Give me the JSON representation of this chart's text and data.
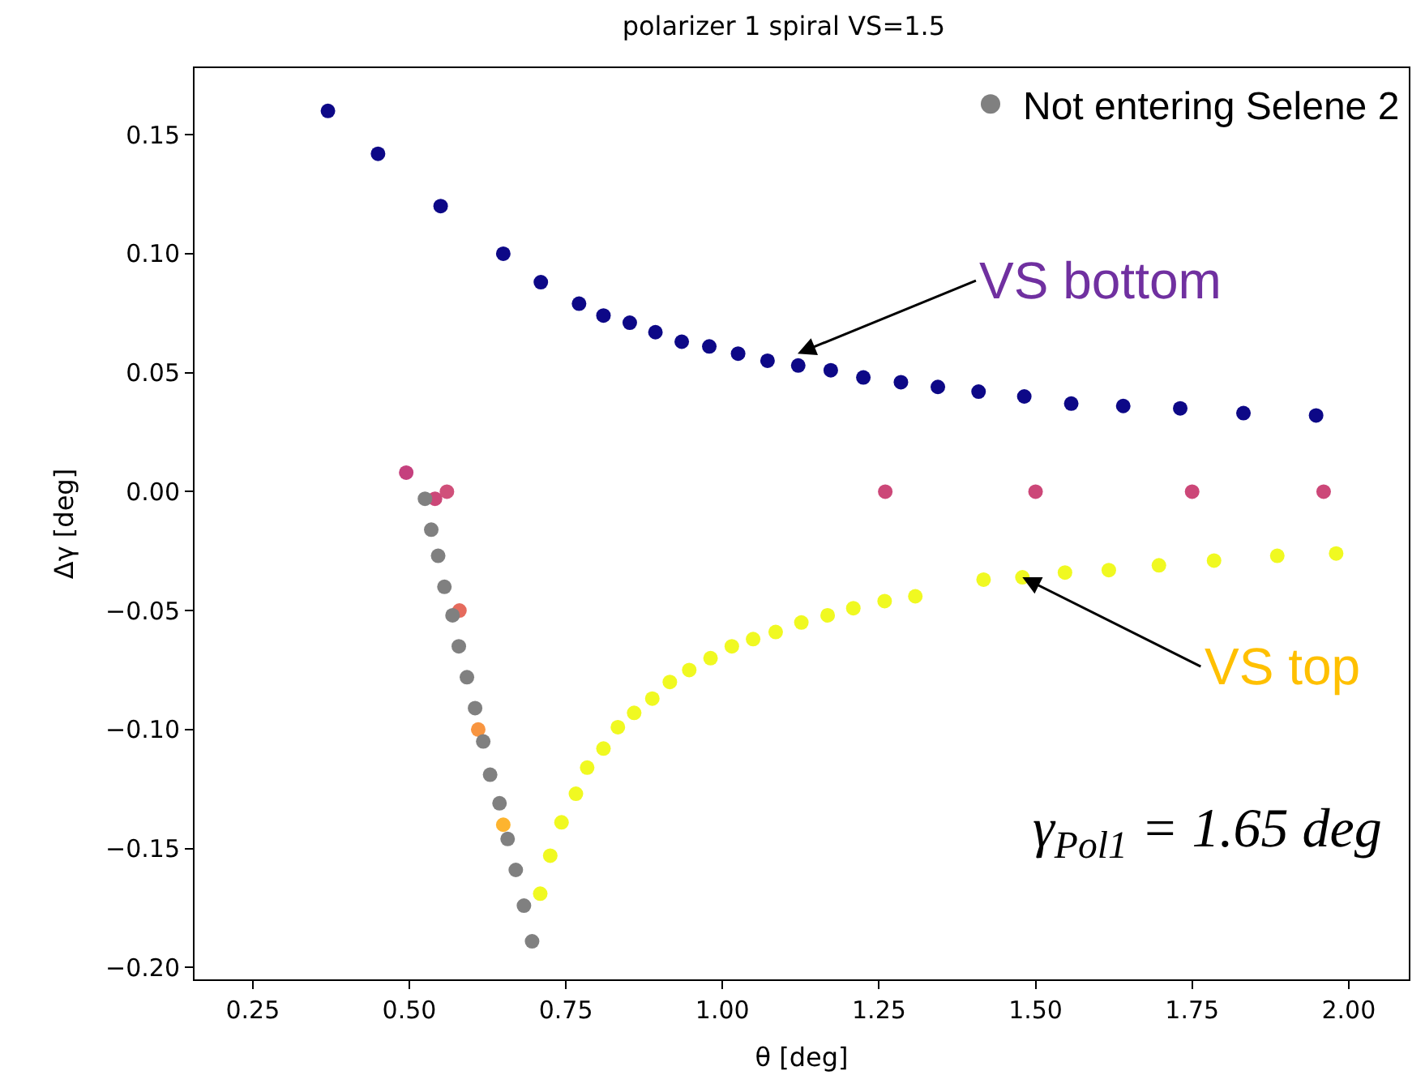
{
  "chart_data": {
    "type": "scatter",
    "title": "polarizer 1 spiral VS=1.5",
    "xlabel": "θ [deg]",
    "ylabel": "Δγ [deg]",
    "series": [
      {
        "x": [
          0.37,
          0.45,
          0.55,
          0.65,
          0.71,
          0.771,
          0.81,
          0.852,
          0.893,
          0.935,
          0.979,
          1.025,
          1.072,
          1.121,
          1.173,
          1.225,
          1.285,
          1.344,
          1.409,
          1.482,
          1.557,
          1.64,
          1.731,
          1.832,
          1.948,
          1.98,
          1.886,
          1.785,
          1.697,
          1.617,
          1.547,
          1.479,
          1.417,
          1.308,
          1.259,
          1.209,
          1.168,
          1.126,
          1.085,
          1.049,
          1.015,
          0.981,
          0.947,
          0.916,
          0.888,
          0.859,
          0.833,
          0.81,
          0.784,
          0.766,
          0.743,
          0.725,
          0.709,
          0.495,
          0.541,
          0.56,
          0.58,
          0.61,
          0.65,
          1.26,
          1.5,
          1.75,
          1.96
        ],
        "values": [
          0.16,
          0.142,
          0.12,
          0.1,
          0.088,
          0.079,
          0.074,
          0.071,
          0.067,
          0.063,
          0.061,
          0.058,
          0.055,
          0.053,
          0.051,
          0.048,
          0.046,
          0.044,
          0.042,
          0.04,
          0.037,
          0.036,
          0.035,
          0.033,
          0.032,
          -0.026,
          -0.027,
          -0.029,
          -0.031,
          -0.033,
          -0.034,
          -0.036,
          -0.037,
          -0.044,
          -0.046,
          -0.049,
          -0.052,
          -0.055,
          -0.059,
          -0.062,
          -0.065,
          -0.07,
          -0.075,
          -0.08,
          -0.087,
          -0.093,
          -0.099,
          -0.108,
          -0.116,
          -0.127,
          -0.139,
          -0.153,
          -0.169,
          0.008,
          -0.003,
          0.0,
          -0.05,
          -0.1,
          -0.14,
          0.0,
          0.0,
          0.0,
          0.0
        ],
        "colors": [
          "#0d0887",
          "#0d0887",
          "#0d0887",
          "#0d0887",
          "#0d0887",
          "#0d0887",
          "#0d0887",
          "#0d0887",
          "#0d0887",
          "#0d0887",
          "#0d0887",
          "#0d0887",
          "#0d0887",
          "#0d0887",
          "#0d0887",
          "#0d0887",
          "#0d0887",
          "#0d0887",
          "#0d0887",
          "#0d0887",
          "#0d0887",
          "#0d0887",
          "#0d0887",
          "#0d0887",
          "#0d0887",
          "#f0f921",
          "#f0f921",
          "#f0f921",
          "#f0f921",
          "#f0f921",
          "#f0f921",
          "#f0f921",
          "#f0f921",
          "#f0f921",
          "#f0f921",
          "#f0f921",
          "#f0f921",
          "#f0f921",
          "#f0f921",
          "#f0f921",
          "#f0f921",
          "#f0f921",
          "#f0f921",
          "#f0f921",
          "#f0f921",
          "#f0f921",
          "#f0f921",
          "#f0f921",
          "#f0f921",
          "#f0f921",
          "#f0f921",
          "#f0f921",
          "#f0f921",
          "#c5407e",
          "#cc4778",
          "#d0507a",
          "#e56b5d",
          "#f89540",
          "#fdb42f",
          "#cc4778",
          "#cc4778",
          "#cc4778",
          "#cc4778"
        ]
      },
      {
        "name": "Not entering Selene 2",
        "color": "#808080",
        "x": [
          0.525,
          0.535,
          0.546,
          0.556,
          0.569,
          0.579,
          0.592,
          0.605,
          0.618,
          0.629,
          0.644,
          0.657,
          0.67,
          0.683,
          0.696
        ],
        "values": [
          -0.003,
          -0.016,
          -0.027,
          -0.04,
          -0.052,
          -0.065,
          -0.078,
          -0.091,
          -0.105,
          -0.119,
          -0.131,
          -0.146,
          -0.159,
          -0.174,
          -0.189
        ]
      }
    ],
    "annotations": [
      {
        "text": "VS bottom",
        "x": 1.12,
        "y": 0.058
      },
      {
        "text": "VS top",
        "x": 1.479,
        "y": -0.036
      },
      "γ$_{Pol1}$ = 1.65 deg"
    ],
    "xlim": [
      0.157,
      2.096
    ],
    "xticks": [
      {
        "value": 0.25,
        "label": "0.25"
      },
      {
        "value": 0.5,
        "label": "0.50"
      },
      {
        "value": 0.75,
        "label": "0.75"
      },
      {
        "value": 1.0,
        "label": "1.00"
      },
      {
        "value": 1.25,
        "label": "1.25"
      },
      {
        "value": 1.5,
        "label": "1.50"
      },
      {
        "value": 1.75,
        "label": "1.75"
      },
      {
        "value": 2.0,
        "label": "2.00"
      }
    ],
    "ylim": [
      -0.205,
      0.178
    ],
    "yticks": [
      {
        "value": -0.2,
        "label": "−0.20"
      },
      {
        "value": -0.15,
        "label": "−0.15"
      },
      {
        "value": -0.1,
        "label": "−0.10"
      },
      {
        "value": -0.05,
        "label": "−0.05"
      },
      {
        "value": 0.0,
        "label": "0.00"
      },
      {
        "value": 0.05,
        "label": "0.05"
      },
      {
        "value": 0.1,
        "label": "0.10"
      },
      {
        "value": 0.15,
        "label": "0.15"
      }
    ],
    "marker": "circle",
    "legend": "top right"
  }
}
